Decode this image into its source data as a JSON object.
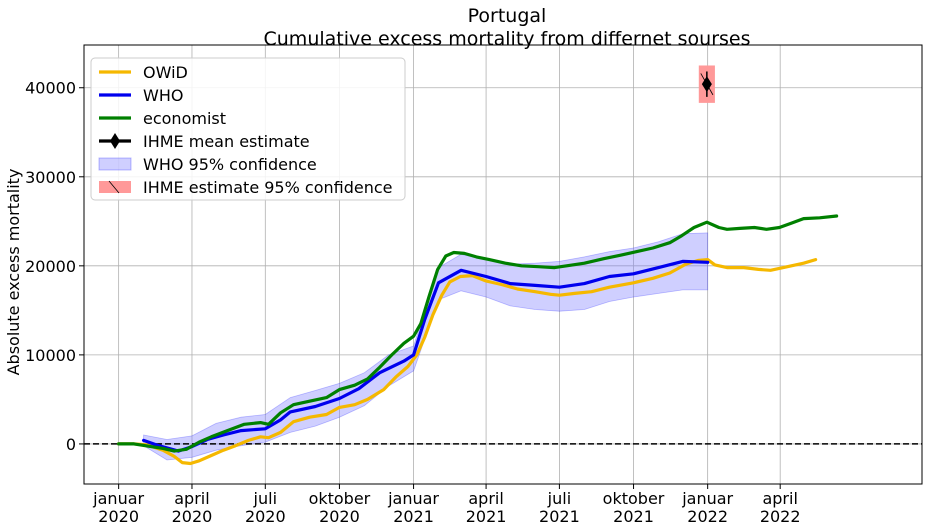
{
  "chart_data": {
    "type": "line",
    "title": "Portugal",
    "subtitle": "Cumulative excess mortality from differnet sourses",
    "xlabel": "",
    "ylabel": "Absolute excess mortality",
    "ylim": [
      -4500,
      44800
    ],
    "xlim": [
      "2019-11-19",
      "2022-09-24"
    ],
    "grid": true,
    "legend_placement": "top-left",
    "zero_line": {
      "y": 0,
      "style": "dashed",
      "color": "#000000"
    },
    "y_ticks": [
      0,
      10000,
      20000,
      30000,
      40000
    ],
    "x_ticks": [
      {
        "date": "2020-01-01",
        "line1": "januar",
        "line2": "2020"
      },
      {
        "date": "2020-04-01",
        "line1": "april",
        "line2": "2020"
      },
      {
        "date": "2020-07-01",
        "line1": "juli",
        "line2": "2020"
      },
      {
        "date": "2020-10-01",
        "line1": "oktober",
        "line2": "2020"
      },
      {
        "date": "2021-01-01",
        "line1": "januar",
        "line2": "2021"
      },
      {
        "date": "2021-04-01",
        "line1": "april",
        "line2": "2021"
      },
      {
        "date": "2021-07-01",
        "line1": "juli",
        "line2": "2021"
      },
      {
        "date": "2021-10-01",
        "line1": "oktober",
        "line2": "2021"
      },
      {
        "date": "2022-01-01",
        "line1": "januar",
        "line2": "2022"
      },
      {
        "date": "2022-04-01",
        "line1": "april",
        "line2": "2022"
      }
    ],
    "series": [
      {
        "name": "OWiD",
        "color": "#f5b800",
        "points": [
          [
            "2020-01-01",
            0
          ],
          [
            "2020-01-20",
            0
          ],
          [
            "2020-02-05",
            -100
          ],
          [
            "2020-02-25",
            -700
          ],
          [
            "2020-03-10",
            -1400
          ],
          [
            "2020-03-20",
            -2100
          ],
          [
            "2020-03-30",
            -2200
          ],
          [
            "2020-04-10",
            -1900
          ],
          [
            "2020-04-25",
            -1300
          ],
          [
            "2020-05-10",
            -700
          ],
          [
            "2020-05-25",
            -200
          ],
          [
            "2020-06-10",
            400
          ],
          [
            "2020-06-25",
            800
          ],
          [
            "2020-07-05",
            700
          ],
          [
            "2020-07-20",
            1300
          ],
          [
            "2020-08-05",
            2500
          ],
          [
            "2020-08-25",
            3000
          ],
          [
            "2020-09-15",
            3300
          ],
          [
            "2020-10-01",
            4100
          ],
          [
            "2020-10-20",
            4400
          ],
          [
            "2020-11-05",
            5000
          ],
          [
            "2020-11-25",
            6100
          ],
          [
            "2020-12-10",
            7500
          ],
          [
            "2020-12-25",
            8700
          ],
          [
            "2021-01-05",
            10000
          ],
          [
            "2021-01-15",
            12000
          ],
          [
            "2021-01-25",
            14500
          ],
          [
            "2021-02-05",
            16700
          ],
          [
            "2021-02-15",
            18200
          ],
          [
            "2021-02-28",
            18800
          ],
          [
            "2021-03-15",
            18900
          ],
          [
            "2021-04-01",
            18300
          ],
          [
            "2021-04-20",
            17900
          ],
          [
            "2021-05-10",
            17400
          ],
          [
            "2021-06-01",
            17100
          ],
          [
            "2021-06-20",
            16800
          ],
          [
            "2021-07-01",
            16700
          ],
          [
            "2021-07-20",
            16900
          ],
          [
            "2021-08-10",
            17100
          ],
          [
            "2021-09-01",
            17600
          ],
          [
            "2021-10-01",
            18100
          ],
          [
            "2021-10-25",
            18600
          ],
          [
            "2021-11-15",
            19200
          ],
          [
            "2021-12-05",
            20200
          ],
          [
            "2021-12-20",
            20600
          ],
          [
            "2022-01-01",
            20700
          ],
          [
            "2022-01-10",
            20100
          ],
          [
            "2022-01-25",
            19800
          ],
          [
            "2022-02-15",
            19800
          ],
          [
            "2022-03-05",
            19600
          ],
          [
            "2022-03-20",
            19500
          ],
          [
            "2022-04-10",
            19900
          ],
          [
            "2022-04-30",
            20300
          ],
          [
            "2022-05-15",
            20700
          ]
        ]
      },
      {
        "name": "WHO",
        "color": "#0000ee",
        "points": [
          [
            "2020-02-01",
            400
          ],
          [
            "2020-02-20",
            -200
          ],
          [
            "2020-03-15",
            -800
          ],
          [
            "2020-04-01",
            -300
          ],
          [
            "2020-04-20",
            500
          ],
          [
            "2020-05-10",
            1000
          ],
          [
            "2020-06-01",
            1500
          ],
          [
            "2020-07-01",
            1700
          ],
          [
            "2020-07-20",
            2700
          ],
          [
            "2020-08-01",
            3600
          ],
          [
            "2020-09-01",
            4200
          ],
          [
            "2020-10-01",
            5100
          ],
          [
            "2020-10-25",
            6200
          ],
          [
            "2020-11-20",
            8000
          ],
          [
            "2020-12-20",
            9300
          ],
          [
            "2021-01-01",
            10000
          ],
          [
            "2021-01-15",
            14000
          ],
          [
            "2021-02-01",
            18100
          ],
          [
            "2021-03-01",
            19500
          ],
          [
            "2021-04-01",
            18800
          ],
          [
            "2021-05-01",
            18000
          ],
          [
            "2021-06-01",
            17800
          ],
          [
            "2021-07-01",
            17600
          ],
          [
            "2021-08-01",
            18000
          ],
          [
            "2021-09-01",
            18800
          ],
          [
            "2021-10-01",
            19100
          ],
          [
            "2021-11-01",
            19800
          ],
          [
            "2021-12-01",
            20500
          ],
          [
            "2022-01-01",
            20400
          ]
        ]
      },
      {
        "name": "economist",
        "color": "#008000",
        "points": [
          [
            "2020-01-01",
            0
          ],
          [
            "2020-01-20",
            0
          ],
          [
            "2020-02-10",
            -300
          ],
          [
            "2020-02-25",
            -500
          ],
          [
            "2020-03-10",
            -800
          ],
          [
            "2020-03-25",
            -600
          ],
          [
            "2020-04-10",
            200
          ],
          [
            "2020-04-25",
            800
          ],
          [
            "2020-05-15",
            1500
          ],
          [
            "2020-06-05",
            2200
          ],
          [
            "2020-06-25",
            2400
          ],
          [
            "2020-07-05",
            2200
          ],
          [
            "2020-07-20",
            3500
          ],
          [
            "2020-08-05",
            4400
          ],
          [
            "2020-08-25",
            4800
          ],
          [
            "2020-09-15",
            5200
          ],
          [
            "2020-10-01",
            6100
          ],
          [
            "2020-10-20",
            6600
          ],
          [
            "2020-11-05",
            7300
          ],
          [
            "2020-11-20",
            8600
          ],
          [
            "2020-12-05",
            10000
          ],
          [
            "2020-12-20",
            11300
          ],
          [
            "2021-01-01",
            12100
          ],
          [
            "2021-01-10",
            13500
          ],
          [
            "2021-01-20",
            16500
          ],
          [
            "2021-01-31",
            19600
          ],
          [
            "2021-02-10",
            21100
          ],
          [
            "2021-02-20",
            21500
          ],
          [
            "2021-03-05",
            21400
          ],
          [
            "2021-03-20",
            21000
          ],
          [
            "2021-04-05",
            20700
          ],
          [
            "2021-04-25",
            20300
          ],
          [
            "2021-05-15",
            20000
          ],
          [
            "2021-06-05",
            19900
          ],
          [
            "2021-06-25",
            19800
          ],
          [
            "2021-07-10",
            20000
          ],
          [
            "2021-08-01",
            20300
          ],
          [
            "2021-08-25",
            20800
          ],
          [
            "2021-09-15",
            21200
          ],
          [
            "2021-10-05",
            21600
          ],
          [
            "2021-10-25",
            22000
          ],
          [
            "2021-11-15",
            22600
          ],
          [
            "2021-11-30",
            23400
          ],
          [
            "2021-12-15",
            24300
          ],
          [
            "2021-12-31",
            24900
          ],
          [
            "2022-01-15",
            24300
          ],
          [
            "2022-01-25",
            24100
          ],
          [
            "2022-02-10",
            24200
          ],
          [
            "2022-02-28",
            24300
          ],
          [
            "2022-03-15",
            24100
          ],
          [
            "2022-03-31",
            24300
          ],
          [
            "2022-04-15",
            24800
          ],
          [
            "2022-04-30",
            25300
          ],
          [
            "2022-05-20",
            25400
          ],
          [
            "2022-06-10",
            25600
          ]
        ]
      }
    ],
    "who_band": {
      "name": "WHO 95% confidence",
      "color": "#8080ff",
      "upper": [
        [
          "2020-02-01",
          1000
        ],
        [
          "2020-03-01",
          500
        ],
        [
          "2020-04-01",
          900
        ],
        [
          "2020-05-01",
          2300
        ],
        [
          "2020-06-01",
          3000
        ],
        [
          "2020-07-01",
          3300
        ],
        [
          "2020-08-01",
          5200
        ],
        [
          "2020-09-01",
          6000
        ],
        [
          "2020-10-01",
          6800
        ],
        [
          "2020-11-01",
          8000
        ],
        [
          "2020-12-01",
          10000
        ],
        [
          "2021-01-01",
          11000
        ],
        [
          "2021-02-01",
          19800
        ],
        [
          "2021-03-01",
          21300
        ],
        [
          "2021-04-01",
          20700
        ],
        [
          "2021-05-01",
          20200
        ],
        [
          "2021-06-01",
          20300
        ],
        [
          "2021-07-01",
          20500
        ],
        [
          "2021-08-01",
          21000
        ],
        [
          "2021-09-01",
          21600
        ],
        [
          "2021-10-01",
          22000
        ],
        [
          "2021-11-01",
          22700
        ],
        [
          "2021-12-01",
          23600
        ],
        [
          "2022-01-01",
          23700
        ]
      ],
      "lower": [
        [
          "2020-02-01",
          -200
        ],
        [
          "2020-03-01",
          -1800
        ],
        [
          "2020-04-01",
          -1500
        ],
        [
          "2020-05-01",
          -700
        ],
        [
          "2020-06-01",
          -200
        ],
        [
          "2020-07-01",
          200
        ],
        [
          "2020-08-01",
          1300
        ],
        [
          "2020-09-01",
          2000
        ],
        [
          "2020-10-01",
          3000
        ],
        [
          "2020-11-01",
          4300
        ],
        [
          "2020-12-01",
          6500
        ],
        [
          "2021-01-01",
          8200
        ],
        [
          "2021-02-01",
          16200
        ],
        [
          "2021-03-01",
          17200
        ],
        [
          "2021-04-01",
          16500
        ],
        [
          "2021-05-01",
          15500
        ],
        [
          "2021-06-01",
          15100
        ],
        [
          "2021-07-01",
          14900
        ],
        [
          "2021-08-01",
          15100
        ],
        [
          "2021-09-01",
          16000
        ],
        [
          "2021-10-01",
          16500
        ],
        [
          "2021-11-01",
          16900
        ],
        [
          "2021-12-01",
          17300
        ],
        [
          "2022-01-01",
          17300
        ]
      ]
    },
    "ihme": {
      "mean_label": "IHME mean estimate",
      "ci_label": " IHME estimate 95% confidence",
      "date": "2021-12-31",
      "mean": 40400,
      "ci_low": 38300,
      "ci_high": 42500,
      "band_start": "2021-12-21",
      "band_end": "2022-01-10",
      "color": "#000000",
      "band_color": "#ff9999"
    }
  }
}
